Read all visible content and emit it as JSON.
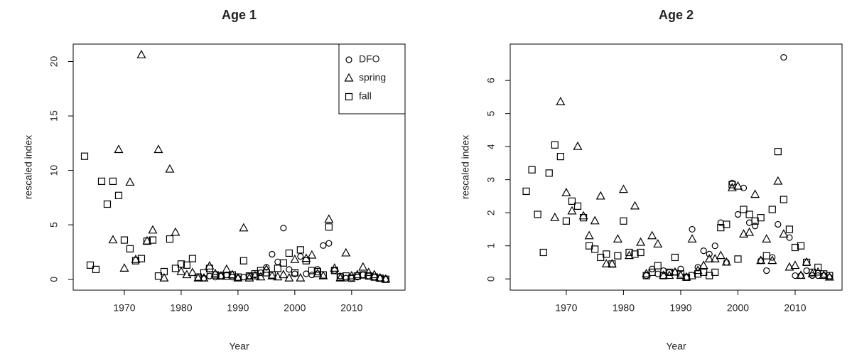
{
  "chart_data": [
    {
      "type": "scatter",
      "title": "Age 1",
      "xlabel": "Year",
      "ylabel": "rescaled index",
      "xlim": [
        1961,
        2019.4
      ],
      "ylim": [
        -1,
        21.6
      ],
      "xticks": [
        1970,
        1980,
        1990,
        2000,
        2010
      ],
      "yticks": [
        0,
        5,
        10,
        15,
        20
      ],
      "legend": "upper right",
      "series": [
        {
          "name": "DFO",
          "marker": "circle",
          "color": "#000000",
          "x": [
            1984,
            1985,
            1986,
            1987,
            1988,
            1989,
            1990,
            1991,
            1992,
            1993,
            1994,
            1995,
            1996,
            1997,
            1998,
            1999,
            2000,
            2001,
            2002,
            2003,
            2004,
            2005,
            2006,
            2007,
            2008,
            2009,
            2010,
            2011,
            2012,
            2013,
            2014,
            2015,
            2016
          ],
          "values": [
            0.1,
            0.3,
            0.2,
            0.3,
            0.4,
            0.2,
            0.1,
            0.2,
            0.3,
            0.4,
            0.6,
            1.1,
            2.3,
            1.6,
            4.7,
            0.9,
            0.5,
            2.1,
            0.5,
            0.4,
            0.9,
            3.1,
            3.3,
            0.8,
            0.3,
            0.1,
            0.1,
            0.2,
            0.4,
            0.3,
            0.2,
            0.1,
            0.0
          ]
        },
        {
          "name": "spring",
          "marker": "triangle",
          "color": "#000000",
          "x": [
            1968,
            1969,
            1970,
            1971,
            1972,
            1973,
            1974,
            1975,
            1976,
            1977,
            1978,
            1979,
            1980,
            1981,
            1982,
            1983,
            1984,
            1985,
            1986,
            1987,
            1988,
            1989,
            1990,
            1991,
            1992,
            1993,
            1994,
            1995,
            1996,
            1997,
            1998,
            1999,
            2000,
            2001,
            2002,
            2003,
            2004,
            2005,
            2006,
            2007,
            2008,
            2009,
            2010,
            2011,
            2012,
            2013,
            2014,
            2015,
            2016
          ],
          "values": [
            3.6,
            11.9,
            1.0,
            8.9,
            1.8,
            20.6,
            3.5,
            4.5,
            11.9,
            0.1,
            10.1,
            4.3,
            0.7,
            0.4,
            0.6,
            0.1,
            0.1,
            1.2,
            0.5,
            0.3,
            0.9,
            0.4,
            0.1,
            4.7,
            0.1,
            0.3,
            0.2,
            0.9,
            0.3,
            0.2,
            0.4,
            0.1,
            1.8,
            0.1,
            1.9,
            2.2,
            0.5,
            0.3,
            5.5,
            1.0,
            0.1,
            2.4,
            0.3,
            0.4,
            1.1,
            0.6,
            0.4,
            0.1,
            0.0
          ]
        },
        {
          "name": "fall",
          "marker": "square",
          "color": "#000000",
          "x": [
            1963,
            1964,
            1965,
            1966,
            1967,
            1968,
            1969,
            1970,
            1971,
            1972,
            1973,
            1974,
            1975,
            1976,
            1977,
            1978,
            1979,
            1980,
            1981,
            1982,
            1983,
            1984,
            1985,
            1986,
            1987,
            1988,
            1989,
            1990,
            1991,
            1992,
            1993,
            1994,
            1995,
            1996,
            1997,
            1998,
            1999,
            2000,
            2001,
            2002,
            2003,
            2004,
            2005,
            2006,
            2007,
            2008,
            2009,
            2010,
            2011,
            2012,
            2013,
            2014,
            2015,
            2016
          ],
          "values": [
            11.3,
            1.3,
            0.9,
            9.0,
            6.9,
            9.0,
            7.7,
            3.6,
            2.8,
            1.7,
            1.9,
            3.5,
            3.6,
            0.3,
            0.7,
            3.7,
            1.0,
            1.4,
            1.3,
            1.9,
            0.2,
            0.6,
            1.0,
            0.4,
            0.3,
            0.3,
            0.4,
            0.2,
            1.7,
            0.3,
            0.5,
            0.8,
            0.6,
            0.4,
            1.0,
            1.5,
            2.4,
            0.6,
            2.7,
            1.7,
            0.8,
            0.7,
            0.4,
            4.8,
            0.8,
            0.2,
            0.3,
            0.1,
            0.3,
            0.4,
            0.3,
            0.2,
            0.1,
            0.0
          ]
        }
      ]
    },
    {
      "type": "scatter",
      "title": "Age 2",
      "xlabel": "Year",
      "ylabel": "rescaled index",
      "xlim": [
        1960.2,
        2018.2
      ],
      "ylim": [
        -0.34,
        7.1
      ],
      "xticks": [
        1970,
        1980,
        1990,
        2000,
        2010
      ],
      "yticks": [
        0,
        1,
        2,
        3,
        4,
        5,
        6
      ],
      "series": [
        {
          "name": "DFO",
          "marker": "circle",
          "color": "#000000",
          "x": [
            1984,
            1985,
            1986,
            1987,
            1988,
            1989,
            1990,
            1991,
            1992,
            1993,
            1994,
            1995,
            1996,
            1997,
            1998,
            1999,
            2000,
            2001,
            2002,
            2003,
            2004,
            2005,
            2006,
            2007,
            2008,
            2009,
            2010,
            2011,
            2012,
            2013,
            2014,
            2015,
            2016
          ],
          "values": [
            0.1,
            0.3,
            0.15,
            0.25,
            0.2,
            0.2,
            0.3,
            0.05,
            1.5,
            0.35,
            0.85,
            0.75,
            1.0,
            1.7,
            0.5,
            2.9,
            1.95,
            2.75,
            1.7,
            1.6,
            0.55,
            0.25,
            0.65,
            1.65,
            6.7,
            1.25,
            0.1,
            0.1,
            0.25,
            0.1,
            0.1,
            0.1,
            0.05
          ]
        },
        {
          "name": "spring",
          "marker": "triangle",
          "color": "#000000",
          "x": [
            1968,
            1969,
            1970,
            1971,
            1972,
            1973,
            1974,
            1975,
            1976,
            1977,
            1978,
            1979,
            1980,
            1981,
            1982,
            1983,
            1984,
            1985,
            1986,
            1987,
            1988,
            1989,
            1990,
            1991,
            1992,
            1993,
            1994,
            1995,
            1996,
            1997,
            1998,
            1999,
            2000,
            2001,
            2002,
            2003,
            2004,
            2005,
            2006,
            2007,
            2008,
            2009,
            2010,
            2011,
            2012,
            2013,
            2014,
            2015,
            2016
          ],
          "values": [
            1.85,
            5.35,
            2.6,
            2.05,
            4.0,
            1.9,
            1.3,
            1.75,
            2.5,
            0.45,
            0.45,
            1.2,
            2.7,
            0.7,
            2.2,
            1.1,
            0.15,
            1.3,
            1.05,
            0.1,
            0.1,
            0.2,
            0.1,
            0.05,
            1.2,
            0.25,
            0.4,
            0.6,
            0.6,
            0.7,
            0.5,
            2.75,
            2.8,
            1.35,
            1.4,
            2.55,
            0.55,
            1.2,
            0.55,
            2.95,
            1.35,
            0.35,
            0.4,
            0.1,
            0.5,
            0.15,
            0.2,
            0.1,
            0.05
          ]
        },
        {
          "name": "fall",
          "marker": "square",
          "color": "#000000",
          "x": [
            1963,
            1964,
            1965,
            1966,
            1967,
            1968,
            1969,
            1970,
            1971,
            1972,
            1973,
            1974,
            1975,
            1976,
            1977,
            1978,
            1979,
            1980,
            1981,
            1982,
            1983,
            1984,
            1985,
            1986,
            1987,
            1988,
            1989,
            1990,
            1991,
            1992,
            1993,
            1994,
            1995,
            1996,
            1997,
            1998,
            1999,
            2000,
            2001,
            2002,
            2003,
            2004,
            2005,
            2006,
            2007,
            2008,
            2009,
            2010,
            2011,
            2012,
            2013,
            2014,
            2015,
            2016
          ],
          "values": [
            2.65,
            3.3,
            1.95,
            0.8,
            3.2,
            4.05,
            3.7,
            1.75,
            2.35,
            2.2,
            1.85,
            1.0,
            0.9,
            0.65,
            0.75,
            0.45,
            0.7,
            1.75,
            0.8,
            0.75,
            0.8,
            0.1,
            0.2,
            0.4,
            0.1,
            0.2,
            0.65,
            0.15,
            0.05,
            0.1,
            0.15,
            0.2,
            0.1,
            0.2,
            1.55,
            1.65,
            2.85,
            0.6,
            2.1,
            1.95,
            1.75,
            1.85,
            0.7,
            2.1,
            3.85,
            2.4,
            1.5,
            0.95,
            1.0,
            0.5,
            0.2,
            0.35,
            0.15,
            0.1
          ]
        }
      ]
    }
  ]
}
